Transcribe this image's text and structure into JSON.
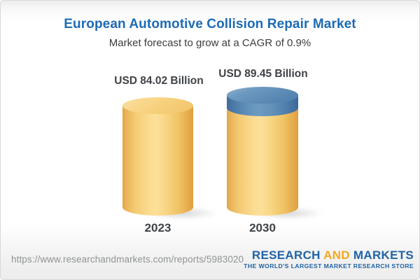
{
  "header": {
    "title": "European Automotive Collision Repair Market",
    "subtitle": "Market forecast to grow at a CAGR of 0.9%"
  },
  "chart_data": {
    "type": "bar",
    "variant": "3d-cylinder",
    "title": "European Automotive Collision Repair Market",
    "categories": [
      "2023",
      "2030"
    ],
    "values": [
      84.02,
      89.45
    ],
    "value_labels": [
      "USD 84.02 Billion",
      "USD 89.45 Billion"
    ],
    "unit": "USD Billion",
    "cagr_percent": 0.9,
    "legend": "none",
    "grid": false,
    "colors": {
      "cylinder_body": "#F6CE7A",
      "growth_cap": "#5E8CB6"
    }
  },
  "footer": {
    "url": "https://www.researchandmarkets.com/reports/5983020",
    "logo": {
      "word_research": "RESEARCH",
      "word_and": "AND",
      "word_markets": "MARKETS",
      "tagline": "THE WORLD'S LARGEST MARKET RESEARCH STORE"
    }
  },
  "colors": {
    "title_blue": "#1D6BB4",
    "logo_blue": "#2063A6",
    "logo_orange": "#F2A81D",
    "text_dark": "#3F4347",
    "url_gray": "#8F9294"
  }
}
